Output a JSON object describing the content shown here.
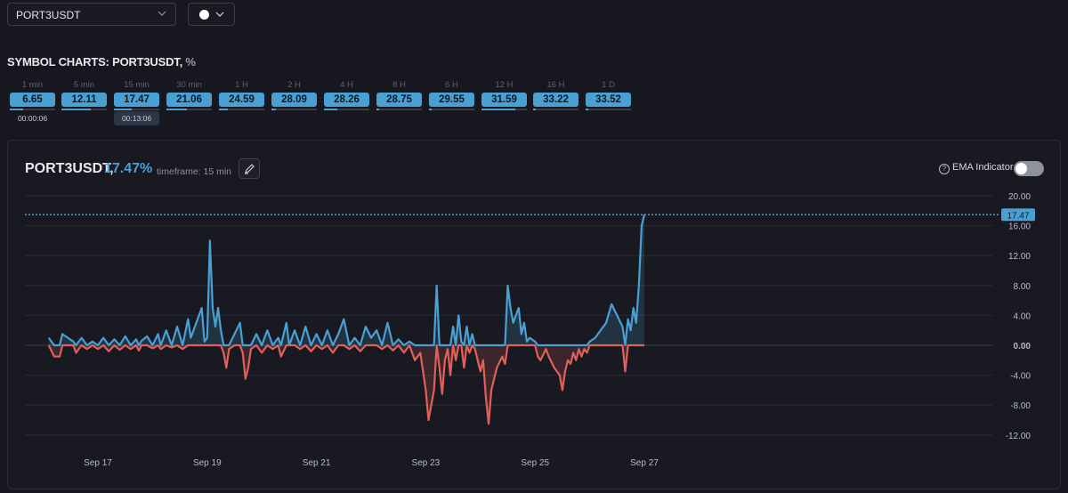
{
  "symbol_select": {
    "value": "PORT3USDT"
  },
  "color_select": {
    "color": "#ffffff"
  },
  "section_title": {
    "name": "SYMBOL CHARTS: PORT3USDT,",
    "unit": "%"
  },
  "timeframes": [
    {
      "label": "1 min",
      "value": "6.65",
      "progress": 0.3,
      "timer": "00:00:06"
    },
    {
      "label": "5 min",
      "value": "12.11",
      "progress": 0.65,
      "timer": ""
    },
    {
      "label": "15 min",
      "value": "17.47",
      "progress": 0.4,
      "timer": "00:13:06"
    },
    {
      "label": "30 min",
      "value": "21.06",
      "progress": 0.45,
      "timer": ""
    },
    {
      "label": "1 H",
      "value": "24.59",
      "progress": 0.2,
      "timer": ""
    },
    {
      "label": "2 H",
      "value": "28.09",
      "progress": 0.1,
      "timer": ""
    },
    {
      "label": "4 H",
      "value": "28.26",
      "progress": 0.3,
      "timer": ""
    },
    {
      "label": "8 H",
      "value": "28.75",
      "progress": 0.05,
      "timer": ""
    },
    {
      "label": "6 H",
      "value": "29.55",
      "progress": 0.05,
      "timer": ""
    },
    {
      "label": "12 H",
      "value": "31.59",
      "progress": 0.75,
      "timer": ""
    },
    {
      "label": "16 H",
      "value": "33.22",
      "progress": 0.05,
      "timer": ""
    },
    {
      "label": "1 D",
      "value": "33.52",
      "progress": 0.05,
      "timer": ""
    }
  ],
  "panel": {
    "symbol": "PORT3USDT,",
    "current_pct": "17.47%",
    "timeframe_text": "timeframe: 15 min",
    "ema_label": "EMA Indicator",
    "ema_enabled": false
  },
  "colors": {
    "accent": "#4a9fd3",
    "positive": "#4a9fd3",
    "negative": "#e0605a"
  },
  "chart_data": {
    "type": "area",
    "y_ticks": [
      "20.00",
      "16.00",
      "12.00",
      "8.00",
      "4.00",
      "0.00",
      "-4.00",
      "-8.00",
      "-12.00"
    ],
    "ylim": [
      -14,
      21
    ],
    "x_ticks": [
      {
        "label": "Sep 17",
        "x": 1.0
      },
      {
        "label": "Sep 19",
        "x": 3.0
      },
      {
        "label": "Sep 21",
        "x": 5.0
      },
      {
        "label": "Sep 23",
        "x": 7.0
      },
      {
        "label": "Sep 25",
        "x": 9.0
      },
      {
        "label": "Sep 27",
        "x": 11.0
      }
    ],
    "xlim": [
      0,
      18.0
    ],
    "current_value": 17.47,
    "current_value_label": "17.47",
    "series": [
      {
        "points": [
          [
            0.1,
            1.0
          ],
          [
            0.2,
            -1.5
          ],
          [
            0.3,
            -1.5
          ],
          [
            0.35,
            1.5
          ],
          [
            0.45,
            1.0
          ],
          [
            0.55,
            0.5
          ],
          [
            0.6,
            -1.0
          ],
          [
            0.7,
            1.0
          ],
          [
            0.8,
            -0.5
          ],
          [
            0.9,
            0.5
          ],
          [
            1.0,
            -0.5
          ],
          [
            1.1,
            1.0
          ],
          [
            1.2,
            -0.8
          ],
          [
            1.3,
            0.8
          ],
          [
            1.4,
            -0.6
          ],
          [
            1.5,
            1.2
          ],
          [
            1.6,
            -0.5
          ],
          [
            1.7,
            0.8
          ],
          [
            1.75,
            -0.7
          ],
          [
            1.8,
            0.6
          ],
          [
            1.9,
            1.2
          ],
          [
            2.0,
            -0.4
          ],
          [
            2.1,
            1.5
          ],
          [
            2.15,
            -0.5
          ],
          [
            2.25,
            2.0
          ],
          [
            2.35,
            -0.3
          ],
          [
            2.45,
            2.5
          ],
          [
            2.55,
            -0.5
          ],
          [
            2.65,
            3.5
          ],
          [
            2.7,
            1.0
          ],
          [
            2.8,
            3.0
          ],
          [
            2.9,
            5.0
          ],
          [
            2.95,
            0.5
          ],
          [
            3.0,
            1.0
          ],
          [
            3.05,
            14.0
          ],
          [
            3.1,
            5.0
          ],
          [
            3.15,
            2.5
          ],
          [
            3.2,
            5.0
          ],
          [
            3.25,
            2.0
          ],
          [
            3.3,
            -1.0
          ],
          [
            3.35,
            -3.0
          ],
          [
            3.4,
            -0.5
          ],
          [
            3.5,
            1.5
          ],
          [
            3.6,
            3.0
          ],
          [
            3.65,
            -1.0
          ],
          [
            3.7,
            -4.5
          ],
          [
            3.75,
            -3.0
          ],
          [
            3.8,
            -0.5
          ],
          [
            3.9,
            1.5
          ],
          [
            4.0,
            -1.0
          ],
          [
            4.1,
            2.0
          ],
          [
            4.2,
            -0.5
          ],
          [
            4.3,
            1.0
          ],
          [
            4.35,
            -1.5
          ],
          [
            4.45,
            3.0
          ],
          [
            4.5,
            0.0
          ],
          [
            4.6,
            2.0
          ],
          [
            4.7,
            -0.5
          ],
          [
            4.8,
            2.5
          ],
          [
            4.9,
            -0.8
          ],
          [
            5.0,
            1.5
          ],
          [
            5.1,
            -0.5
          ],
          [
            5.2,
            2.0
          ],
          [
            5.3,
            -1.0
          ],
          [
            5.4,
            1.5
          ],
          [
            5.5,
            3.5
          ],
          [
            5.6,
            -0.5
          ],
          [
            5.7,
            1.0
          ],
          [
            5.8,
            -0.8
          ],
          [
            5.9,
            2.5
          ],
          [
            6.0,
            1.0
          ],
          [
            6.1,
            2.0
          ],
          [
            6.2,
            -0.5
          ],
          [
            6.3,
            3.0
          ],
          [
            6.4,
            -0.7
          ],
          [
            6.5,
            0.8
          ],
          [
            6.6,
            -1.0
          ],
          [
            6.7,
            0.5
          ],
          [
            6.8,
            -2.0
          ],
          [
            6.9,
            -1.0
          ],
          [
            6.95,
            -3.5
          ],
          [
            7.0,
            -6.0
          ],
          [
            7.05,
            -10.0
          ],
          [
            7.1,
            -8.0
          ],
          [
            7.15,
            -6.0
          ],
          [
            7.2,
            8.0
          ],
          [
            7.25,
            -3.0
          ],
          [
            7.3,
            -6.5
          ],
          [
            7.35,
            -2.0
          ],
          [
            7.4,
            -0.5
          ],
          [
            7.45,
            -4.0
          ],
          [
            7.5,
            2.5
          ],
          [
            7.55,
            -2.0
          ],
          [
            7.6,
            4.0
          ],
          [
            7.65,
            0.5
          ],
          [
            7.7,
            -3.0
          ],
          [
            7.75,
            2.5
          ],
          [
            7.8,
            -1.0
          ],
          [
            7.85,
            1.5
          ],
          [
            7.9,
            -0.5
          ],
          [
            8.0,
            -3.5
          ],
          [
            8.05,
            -2.0
          ],
          [
            8.1,
            -7.0
          ],
          [
            8.15,
            -10.5
          ],
          [
            8.2,
            -6.0
          ],
          [
            8.3,
            -3.0
          ],
          [
            8.4,
            -1.5
          ],
          [
            8.45,
            -2.5
          ],
          [
            8.5,
            8.0
          ],
          [
            8.55,
            5.0
          ],
          [
            8.6,
            3.0
          ],
          [
            8.7,
            5.0
          ],
          [
            8.75,
            1.5
          ],
          [
            8.8,
            3.0
          ],
          [
            8.85,
            0.5
          ],
          [
            8.9,
            1.0
          ],
          [
            9.0,
            0.5
          ],
          [
            9.05,
            -1.5
          ],
          [
            9.1,
            -2.0
          ],
          [
            9.2,
            -0.5
          ],
          [
            9.25,
            -1.5
          ],
          [
            9.35,
            -3.0
          ],
          [
            9.45,
            -4.0
          ],
          [
            9.5,
            -6.0
          ],
          [
            9.55,
            -3.5
          ],
          [
            9.6,
            -2.0
          ],
          [
            9.65,
            -2.5
          ],
          [
            9.7,
            -1.0
          ],
          [
            9.75,
            -2.0
          ],
          [
            9.8,
            -0.5
          ],
          [
            9.85,
            -1.5
          ],
          [
            9.9,
            -0.5
          ],
          [
            9.95,
            -1.0
          ],
          [
            10.0,
            0.5
          ],
          [
            10.1,
            1.0
          ],
          [
            10.2,
            2.0
          ],
          [
            10.3,
            3.0
          ],
          [
            10.4,
            5.5
          ],
          [
            10.5,
            4.0
          ],
          [
            10.6,
            2.5
          ],
          [
            10.65,
            -3.5
          ],
          [
            10.7,
            3.5
          ],
          [
            10.75,
            2.0
          ],
          [
            10.8,
            5.0
          ],
          [
            10.85,
            3.0
          ],
          [
            10.9,
            8.0
          ],
          [
            10.95,
            16.0
          ],
          [
            11.0,
            17.5
          ]
        ]
      }
    ]
  }
}
